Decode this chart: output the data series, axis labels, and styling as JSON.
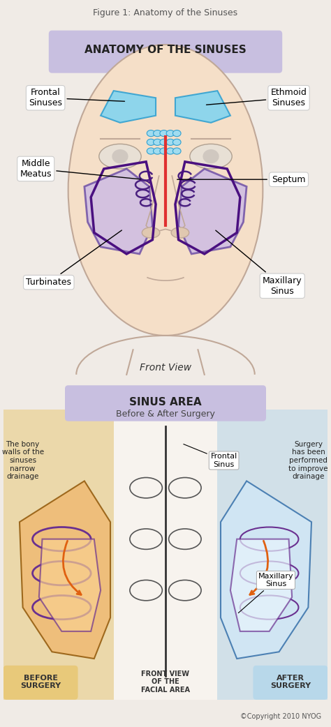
{
  "fig_title": "Figure 1: Anatomy of the Sinuses",
  "fig_title_fontsize": 9,
  "fig_title_color": "#555555",
  "bg_color": "#f0ebe6",
  "panel1": {
    "title": "ANATOMY OF THE SINUSES",
    "title_bg": "#c8bfe0",
    "title_color": "#222222",
    "subtitle": "Front View"
  },
  "panel2": {
    "title": "SINUS AREA",
    "title_color": "#222222",
    "subtitle": "Before & After Surgery",
    "subtitle_color": "#444444",
    "label_before": "BEFORE\nSURGERY",
    "label_after": "AFTER\nSURGERY",
    "label_front": "FRONT VIEW\nOF THE\nFACIAL AREA",
    "label_left": "The bony\nwalls of the\nsinuses\nnarrow\ndrainage",
    "label_right": "Surgery\nhas been\nperformed\nto improve\ndrainage",
    "label_frontal": "Frontal\nSinus",
    "label_maxillary": "Maxillary\nSinus",
    "before_bg": "#e8c97a",
    "after_bg": "#b8d8ea",
    "center_bg": "#f5f0ec"
  },
  "copyright": "©Copyright 2010 NYOG"
}
